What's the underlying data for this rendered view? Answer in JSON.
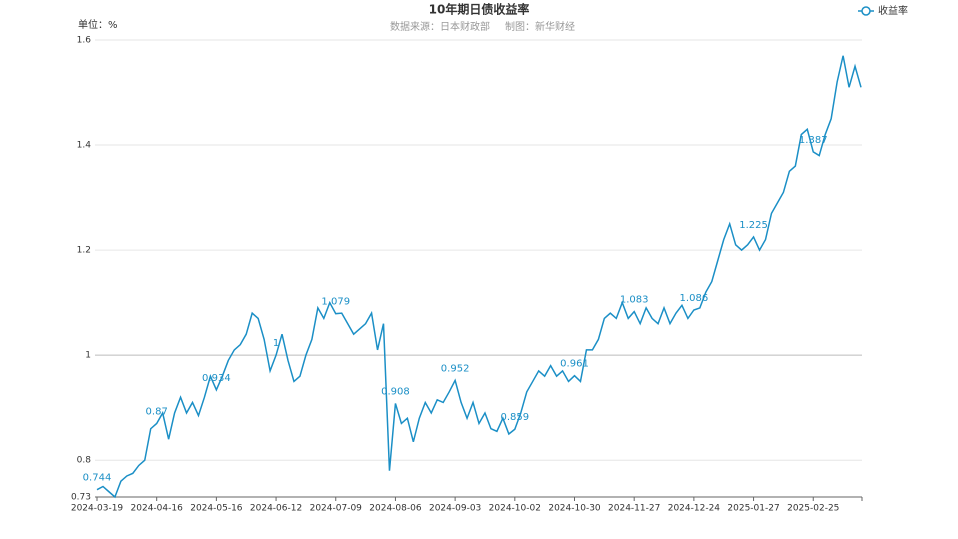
{
  "chart_data": {
    "type": "line",
    "title": "10年期日债收益率",
    "subtitle": [
      "数据来源：日本财政部",
      "制图：新华财经"
    ],
    "unit_label": "单位：%",
    "categories": [
      "2024-03-19",
      null,
      null,
      null,
      null,
      null,
      null,
      null,
      null,
      null,
      "2024-04-16",
      null,
      null,
      null,
      null,
      null,
      null,
      null,
      null,
      null,
      "2024-05-16",
      null,
      null,
      null,
      null,
      null,
      null,
      null,
      null,
      null,
      "2024-06-12",
      null,
      null,
      null,
      null,
      null,
      null,
      null,
      null,
      null,
      "2024-07-09",
      null,
      null,
      null,
      null,
      null,
      null,
      null,
      null,
      null,
      "2024-08-06",
      null,
      null,
      null,
      null,
      null,
      null,
      null,
      null,
      null,
      "2024-09-03",
      null,
      null,
      null,
      null,
      null,
      null,
      null,
      null,
      null,
      "2024-10-02",
      null,
      null,
      null,
      null,
      null,
      null,
      null,
      null,
      null,
      "2024-10-30",
      null,
      null,
      null,
      null,
      null,
      null,
      null,
      null,
      null,
      "2024-11-27",
      null,
      null,
      null,
      null,
      null,
      null,
      null,
      null,
      null,
      "2024-12-24",
      null,
      null,
      null,
      null,
      null,
      null,
      null,
      null,
      null,
      "2025-01-27",
      null,
      null,
      null,
      null,
      null,
      null,
      null,
      null,
      null,
      "2025-02-25",
      null,
      null,
      null,
      null,
      null,
      null,
      null,
      null
    ],
    "series": [
      {
        "name": "收益率",
        "color": "#1b8fc6",
        "values": [
          0.744,
          0.75,
          0.74,
          0.73,
          0.76,
          0.77,
          0.775,
          0.79,
          0.8,
          0.86,
          0.87,
          0.89,
          0.84,
          0.89,
          0.92,
          0.89,
          0.91,
          0.885,
          0.92,
          0.96,
          0.934,
          0.96,
          0.99,
          1.01,
          1.02,
          1.04,
          1.08,
          1.07,
          1.03,
          0.97,
          1,
          1.04,
          0.99,
          0.95,
          0.96,
          1.0,
          1.03,
          1.09,
          1.07,
          1.1,
          1.079,
          1.08,
          1.06,
          1.04,
          1.05,
          1.06,
          1.08,
          1.01,
          1.06,
          0.78,
          0.908,
          0.87,
          0.88,
          0.835,
          0.88,
          0.91,
          0.89,
          0.915,
          0.91,
          0.93,
          0.952,
          0.91,
          0.88,
          0.91,
          0.87,
          0.89,
          0.86,
          0.855,
          0.88,
          0.85,
          0.859,
          0.89,
          0.93,
          0.95,
          0.97,
          0.96,
          0.98,
          0.96,
          0.97,
          0.95,
          0.961,
          0.95,
          1.01,
          1.01,
          1.03,
          1.07,
          1.08,
          1.07,
          1.1,
          1.07,
          1.083,
          1.06,
          1.09,
          1.07,
          1.06,
          1.09,
          1.06,
          1.08,
          1.095,
          1.07,
          1.086,
          1.09,
          1.12,
          1.14,
          1.18,
          1.22,
          1.25,
          1.21,
          1.2,
          1.21,
          1.225,
          1.2,
          1.22,
          1.27,
          1.29,
          1.31,
          1.35,
          1.36,
          1.42,
          1.43,
          1.387,
          1.38,
          1.42,
          1.45,
          1.52,
          1.57,
          1.51,
          1.55,
          1.51
        ]
      }
    ],
    "ylim": [
      0.73,
      1.6
    ],
    "yticks": [
      0.73,
      0.8,
      1,
      1.2,
      1.4,
      1.6
    ],
    "grid": true,
    "legend": "top-right"
  }
}
